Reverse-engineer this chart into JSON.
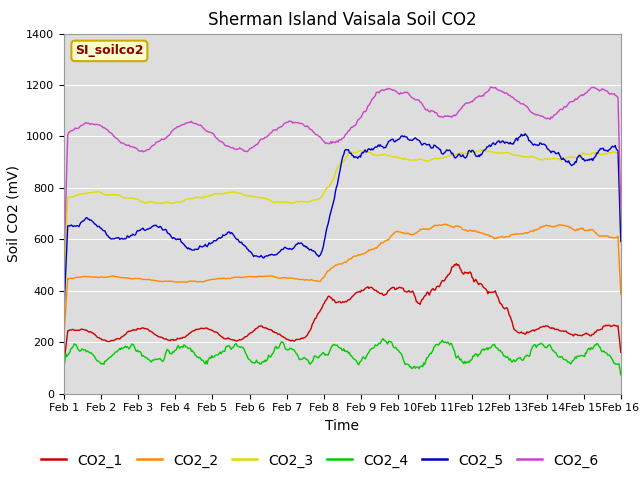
{
  "title": "Sherman Island Vaisala Soil CO2",
  "ylabel": "Soil CO2 (mV)",
  "xlabel": "Time",
  "watermark": "SI_soilco2",
  "x_labels": [
    "Feb 1",
    "Feb 2",
    "Feb 3",
    "Feb 4",
    "Feb 5",
    "Feb 6",
    "Feb 7",
    "Feb 8",
    "Feb 9",
    "Feb 10",
    "Feb 11",
    "Feb 12",
    "Feb 13",
    "Feb 14",
    "Feb 15",
    "Feb 16"
  ],
  "ylim": [
    0,
    1400
  ],
  "xlim": [
    0,
    15
  ],
  "yticks": [
    0,
    200,
    400,
    600,
    800,
    1000,
    1200,
    1400
  ],
  "series_names": [
    "CO2_1",
    "CO2_2",
    "CO2_3",
    "CO2_4",
    "CO2_5",
    "CO2_6"
  ],
  "series_colors": [
    "#cc0000",
    "#ff8800",
    "#dddd00",
    "#00cc00",
    "#0000cc",
    "#cc44cc"
  ],
  "background_color": "#ffffff",
  "plot_bg_color": "#dddddd",
  "grid_color": "#ffffff",
  "title_fontsize": 12,
  "axis_label_fontsize": 10,
  "tick_fontsize": 8,
  "legend_fontsize": 10,
  "watermark_facecolor": "#ffffcc",
  "watermark_edgecolor": "#ccaa00",
  "watermark_textcolor": "#8B0000"
}
